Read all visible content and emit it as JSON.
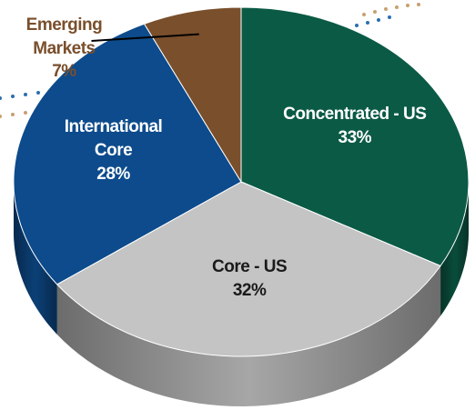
{
  "chart_data": {
    "type": "pie",
    "categories": [
      "Concentrated - US",
      "Core - US",
      "International Core",
      "Emerging Markets"
    ],
    "values": [
      33,
      32,
      28,
      7
    ],
    "value_labels": [
      "33%",
      "32%",
      "28%",
      "7%"
    ],
    "colors": [
      "#0b5a45",
      "#c4c4c4",
      "#0d4b8c",
      "#7a4f2c"
    ]
  }
}
